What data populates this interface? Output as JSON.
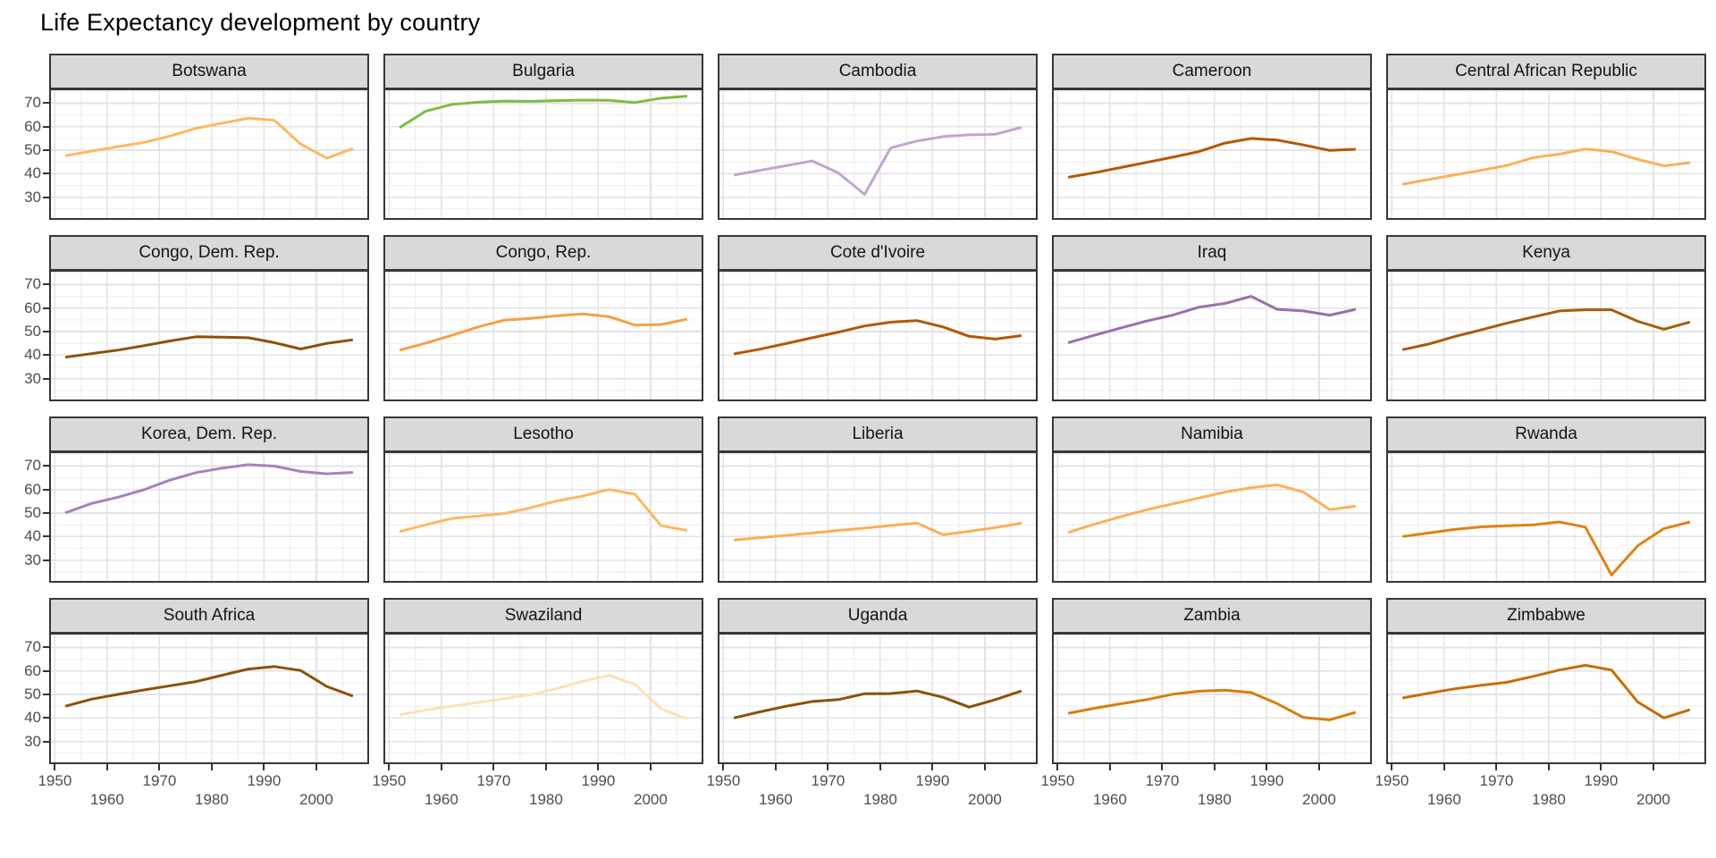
{
  "title": "Life Expectancy development by country",
  "theme": {
    "strip_fill": "#d9d9d9",
    "strip_text_color": "#141414",
    "panel_border_color": "#373737",
    "grid_major_color": "#e3e3e3",
    "grid_minor_color": "#f1f1f1",
    "axis_text_color": "#4d4d4d",
    "tick_color": "#333333",
    "title_color": "#000000",
    "background": "#ffffff"
  },
  "chart_data": {
    "type": "line",
    "title": "Life Expectancy development by country",
    "xlabel": "",
    "ylabel": "",
    "facets_per_row": 5,
    "x": [
      1952,
      1957,
      1962,
      1967,
      1972,
      1977,
      1982,
      1987,
      1992,
      1997,
      2002,
      2007
    ],
    "x_ticks": [
      1950,
      1960,
      1970,
      1980,
      1990,
      2000
    ],
    "x_minor_ticks": [
      1955,
      1965,
      1975,
      1985,
      1995,
      2005
    ],
    "y_ticks": [
      70,
      60,
      50,
      40,
      30
    ],
    "y_minor_ticks": [
      75,
      65,
      55,
      45,
      35,
      25
    ],
    "xlim": [
      1949.25,
      2009.75
    ],
    "ylim": [
      21.1,
      75.5
    ],
    "grid": true,
    "legend": false,
    "series": [
      {
        "name": "Botswana",
        "color": "#fdb863",
        "values": [
          47.6,
          49.6,
          51.5,
          53.3,
          56.0,
          59.3,
          61.5,
          63.6,
          62.7,
          52.6,
          46.6,
          50.7
        ]
      },
      {
        "name": "Bulgaria",
        "color": "#7fbc41",
        "values": [
          59.6,
          66.6,
          69.5,
          70.4,
          70.9,
          70.8,
          71.1,
          71.3,
          71.2,
          70.3,
          72.1,
          73.0
        ]
      },
      {
        "name": "Cambodia",
        "color": "#c2a5cf",
        "values": [
          39.4,
          41.4,
          43.4,
          45.4,
          40.3,
          31.2,
          51.0,
          53.9,
          55.8,
          56.5,
          56.8,
          59.7
        ]
      },
      {
        "name": "Cameroon",
        "color": "#b35806",
        "values": [
          38.5,
          40.4,
          42.6,
          44.8,
          47.0,
          49.4,
          53.0,
          55.0,
          54.3,
          52.2,
          49.9,
          50.4
        ]
      },
      {
        "name": "Central African Republic",
        "color": "#fcb05c",
        "values": [
          35.5,
          37.5,
          39.5,
          41.4,
          43.5,
          46.8,
          48.3,
          50.5,
          49.4,
          46.1,
          43.3,
          44.7
        ]
      },
      {
        "name": "Congo, Dem. Rep.",
        "color": "#8c510a",
        "values": [
          39.1,
          40.6,
          42.1,
          44.0,
          46.0,
          47.8,
          47.6,
          47.4,
          45.3,
          42.6,
          45.0,
          46.5
        ]
      },
      {
        "name": "Congo, Rep.",
        "color": "#f6a045",
        "values": [
          42.1,
          45.1,
          48.4,
          52.0,
          54.9,
          55.6,
          56.7,
          57.5,
          56.4,
          52.8,
          53.0,
          55.3
        ]
      },
      {
        "name": "Cote d'Ivoire",
        "color": "#b35806",
        "values": [
          40.5,
          42.5,
          44.9,
          47.4,
          49.8,
          52.4,
          54.0,
          54.7,
          52.0,
          48.0,
          46.8,
          48.3
        ]
      },
      {
        "name": "Iraq",
        "color": "#9970ab",
        "values": [
          45.3,
          48.4,
          51.5,
          54.5,
          57.0,
          60.4,
          62.0,
          65.0,
          59.5,
          58.8,
          57.0,
          59.5
        ]
      },
      {
        "name": "Kenya",
        "color": "#a55d0c",
        "values": [
          42.3,
          44.7,
          47.9,
          50.7,
          53.6,
          56.2,
          58.8,
          59.3,
          59.3,
          54.4,
          51.0,
          54.1
        ]
      },
      {
        "name": "Korea, Dem. Rep.",
        "color": "#a583bb",
        "values": [
          50.1,
          54.1,
          56.7,
          59.9,
          64.0,
          67.2,
          69.1,
          70.6,
          70.0,
          67.7,
          66.7,
          67.3
        ]
      },
      {
        "name": "Lesotho",
        "color": "#fdb863",
        "values": [
          42.1,
          45.0,
          47.7,
          48.7,
          49.8,
          52.2,
          55.1,
          57.2,
          60.0,
          58.0,
          44.6,
          42.6
        ]
      },
      {
        "name": "Liberia",
        "color": "#fcae57",
        "values": [
          38.5,
          39.5,
          40.5,
          41.5,
          42.6,
          43.6,
          44.7,
          45.7,
          40.8,
          42.2,
          43.8,
          45.7
        ]
      },
      {
        "name": "Namibia",
        "color": "#fcb05c",
        "values": [
          41.7,
          45.2,
          48.4,
          51.4,
          53.9,
          56.4,
          58.9,
          60.8,
          62.0,
          58.9,
          51.5,
          52.9
        ]
      },
      {
        "name": "Rwanda",
        "color": "#e08214",
        "values": [
          40.0,
          41.5,
          43.0,
          44.1,
          44.6,
          45.0,
          46.2,
          44.0,
          23.6,
          36.1,
          43.4,
          46.2
        ]
      },
      {
        "name": "South Africa",
        "color": "#8c510a",
        "values": [
          45.0,
          48.0,
          50.0,
          51.9,
          53.7,
          55.5,
          58.2,
          60.8,
          61.9,
          60.2,
          53.4,
          49.3
        ]
      },
      {
        "name": "Swaziland",
        "color": "#fee0b6",
        "values": [
          41.4,
          43.4,
          45.0,
          46.6,
          48.2,
          49.9,
          52.5,
          55.6,
          58.1,
          54.3,
          43.9,
          39.6
        ]
      },
      {
        "name": "Uganda",
        "color": "#8c510a",
        "values": [
          40.0,
          42.6,
          45.0,
          47.0,
          47.8,
          50.3,
          50.4,
          51.5,
          48.8,
          44.6,
          47.8,
          51.5
        ]
      },
      {
        "name": "Zambia",
        "color": "#d57f0e",
        "values": [
          42.0,
          44.1,
          46.0,
          47.8,
          50.1,
          51.4,
          51.8,
          50.8,
          46.1,
          40.2,
          39.2,
          42.4
        ]
      },
      {
        "name": "Zimbabwe",
        "color": "#c96c07",
        "values": [
          48.5,
          50.5,
          52.4,
          53.9,
          55.2,
          57.7,
          60.4,
          62.4,
          60.4,
          46.8,
          40.0,
          43.5
        ]
      }
    ]
  }
}
